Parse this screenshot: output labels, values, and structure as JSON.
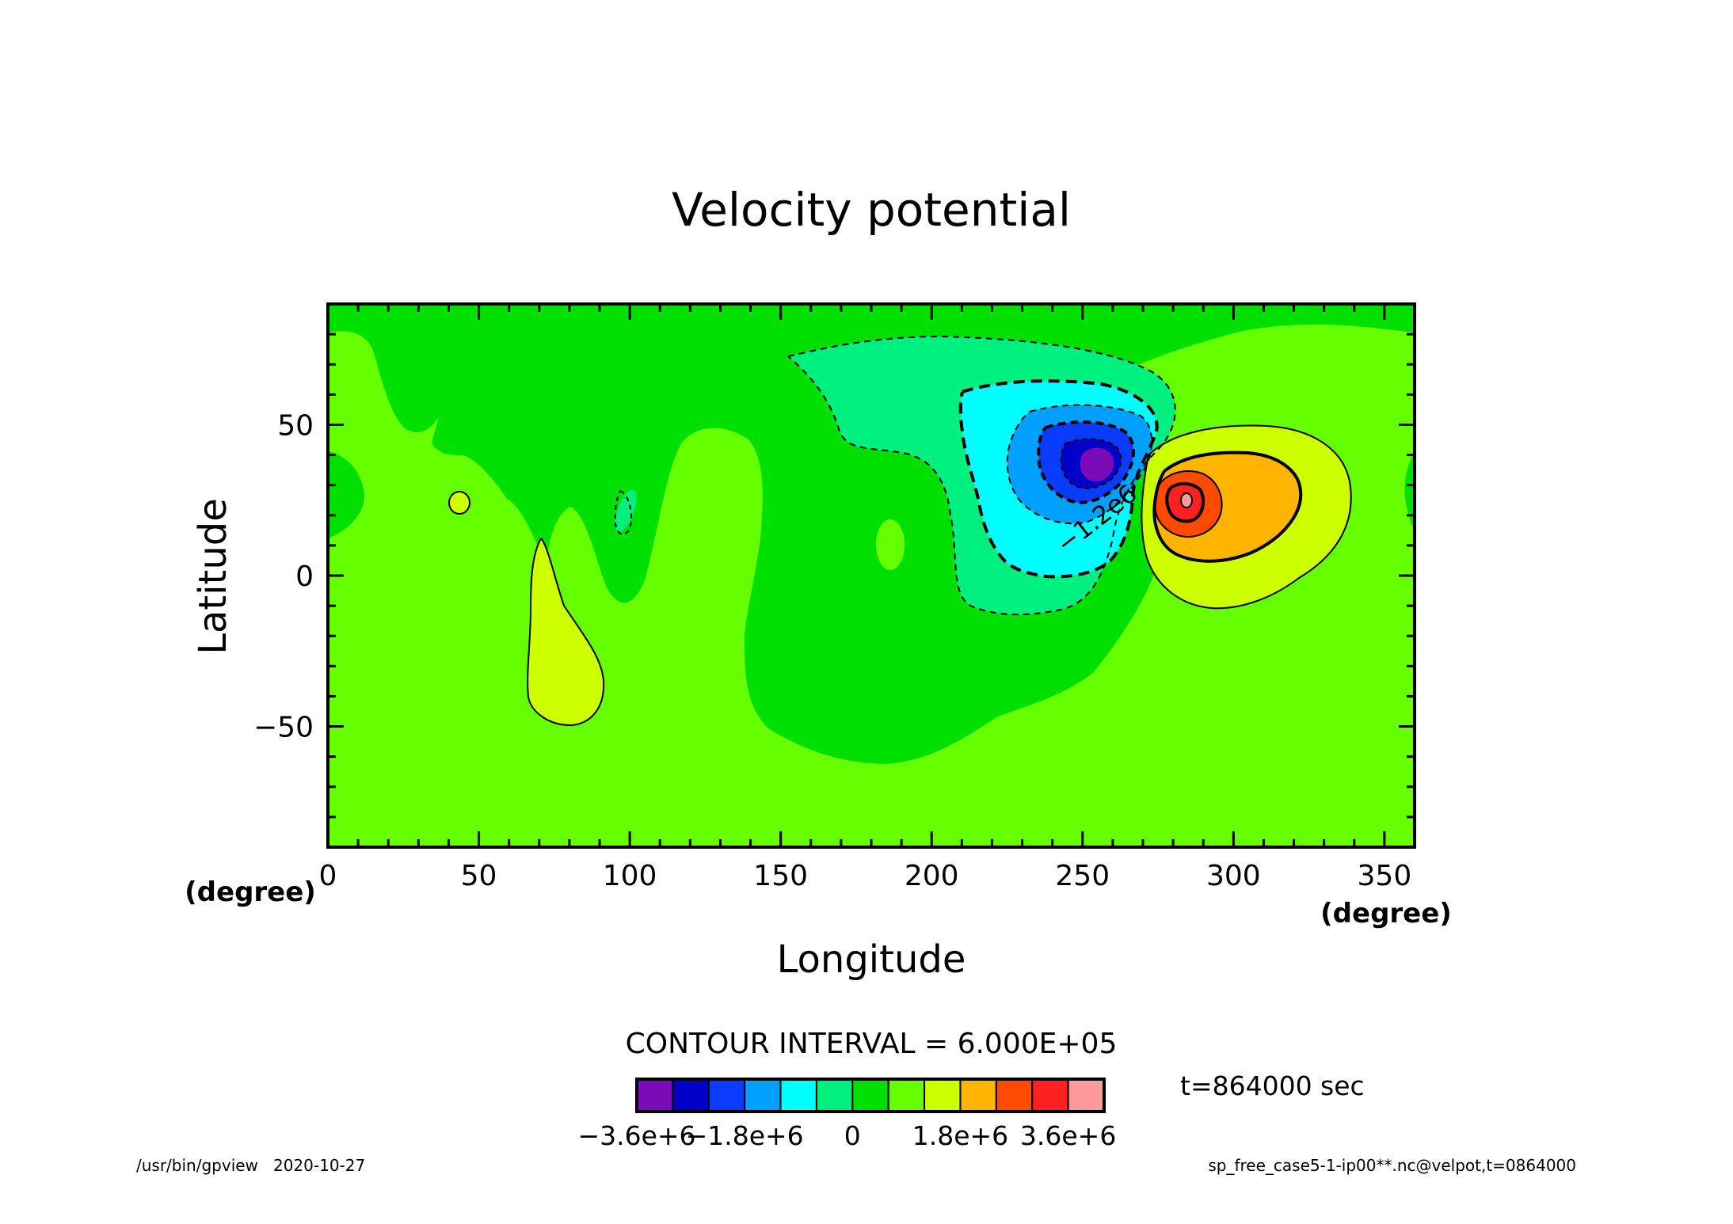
{
  "chart_data": {
    "type": "heatmap",
    "title": "Velocity potential",
    "xlabel": "Longitude",
    "ylabel": "Latitude",
    "x_unit": "(degree)",
    "y_unit": "(degree)",
    "xlim": [
      0,
      360
    ],
    "ylim": [
      -90,
      90
    ],
    "x_ticks": [
      0,
      50,
      100,
      150,
      200,
      250,
      300,
      350
    ],
    "y_ticks": [
      -50,
      0,
      50
    ],
    "x_tick_labels": [
      "0",
      "50",
      "100",
      "150",
      "200",
      "250",
      "300",
      "350"
    ],
    "y_tick_labels": [
      "−50",
      "0",
      "50"
    ],
    "contour_interval_label": "CONTOUR INTERVAL = 6.000E+05",
    "contour_interval": 600000,
    "contour_label": "−1.2e6",
    "time_label": "t=864000 sec",
    "colorbar": {
      "levels": [
        -3600000,
        -3000000,
        -2400000,
        -1800000,
        -1200000,
        -600000,
        0,
        600000,
        1200000,
        1800000,
        2400000,
        3000000,
        3600000
      ],
      "colors": [
        "#7b0bb8",
        "#0000c8",
        "#0a3cff",
        "#00a0ff",
        "#00ffff",
        "#00f080",
        "#00e000",
        "#66ff00",
        "#ccff00",
        "#ffb400",
        "#ff4a00",
        "#ff2020",
        "#ff9a9a"
      ],
      "tick_labels": [
        {
          "value": -3600000,
          "label": "−3.6e+6"
        },
        {
          "value": -1800000,
          "label": "−1.8e+6"
        },
        {
          "value": 0,
          "label": "0"
        },
        {
          "value": 1800000,
          "label": "1.8e+6"
        },
        {
          "value": 3600000,
          "label": "3.6e+6"
        }
      ]
    },
    "features": [
      {
        "kind": "min",
        "lon": 256,
        "lat": 36,
        "value": -3600000
      },
      {
        "kind": "max",
        "lon": 285,
        "lat": 24,
        "value": 3600000
      }
    ]
  },
  "footer": {
    "left": "/usr/bin/gpview   2020-10-27",
    "right": "sp_free_case5-1-ip00**.nc@velpot,t=0864000"
  }
}
